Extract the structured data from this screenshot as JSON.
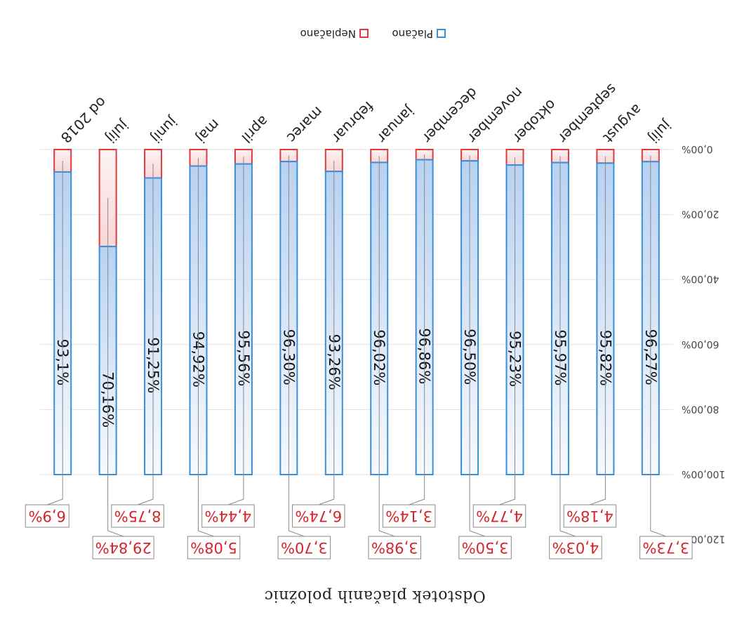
{
  "chart_data": {
    "type": "bar",
    "stacked": true,
    "orientation": "vertical",
    "title": "Odstotek plačanih položnic",
    "categories": [
      "julij",
      "avgust",
      "september",
      "oktober",
      "november",
      "december",
      "januar",
      "februar",
      "marec",
      "april",
      "maj",
      "junij",
      "julij",
      "od 2018"
    ],
    "series": [
      {
        "name": "Plačano",
        "color": "#3a8fd6",
        "values": [
          96.27,
          95.82,
          95.97,
          95.23,
          96.5,
          96.86,
          96.02,
          93.26,
          96.3,
          95.56,
          94.92,
          91.25,
          70.16,
          93.1
        ],
        "labels": [
          "96,27%",
          "95,82%",
          "95,97%",
          "95,23%",
          "96,50%",
          "96,86%",
          "96,02%",
          "93,26%",
          "96,30%",
          "95,56%",
          "94,92%",
          "91,25%",
          "70,16%",
          "93,1%"
        ]
      },
      {
        "name": "Neplačano",
        "color": "#e03a3e",
        "values": [
          3.73,
          4.18,
          4.03,
          4.77,
          3.5,
          3.14,
          3.98,
          6.74,
          3.7,
          4.44,
          5.08,
          8.75,
          29.84,
          6.9
        ],
        "labels": [
          "3,73%",
          "4,18%",
          "4,03%",
          "4,77%",
          "3,50%",
          "3,14%",
          "3,98%",
          "6,74%",
          "3,70%",
          "4,44%",
          "5,08%",
          "8,75%",
          "29,84%",
          "6,9%"
        ]
      }
    ],
    "y_ticks": [
      "0,00%",
      "20,00%",
      "40,00%",
      "60,00%",
      "80,00%",
      "100,00%",
      "120,00%"
    ],
    "ylim": [
      0,
      120
    ],
    "legend_position": "top",
    "grid": true,
    "image_rotation": "180 degrees (scanned upside down)"
  }
}
